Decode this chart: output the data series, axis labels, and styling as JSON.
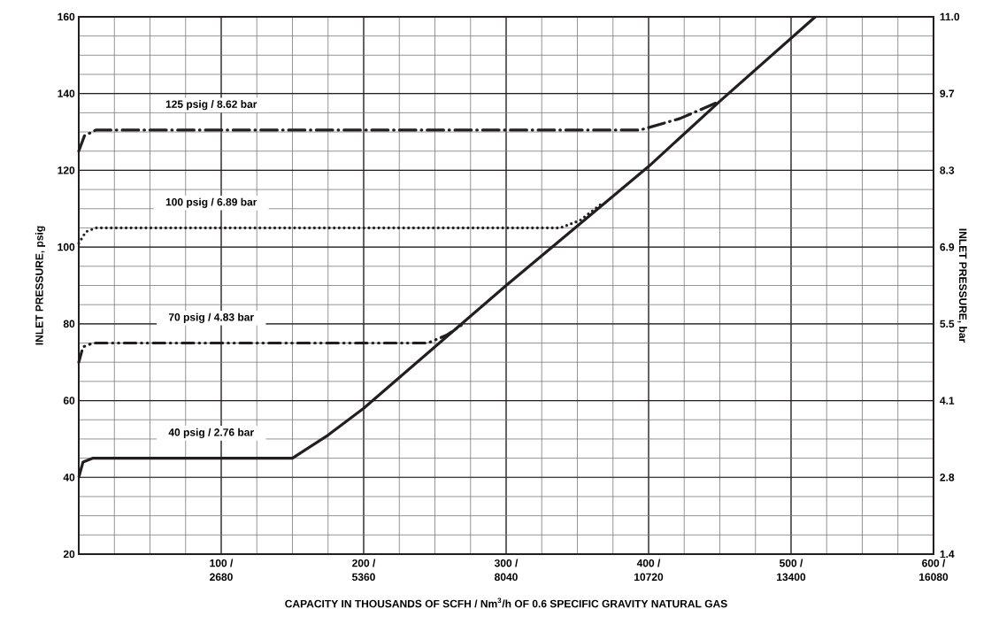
{
  "chart_data": {
    "type": "line",
    "xlabel": "CAPACITY IN THOUSANDS OF SCFH / Nm$^{3}$/h OF 0.6 SPECIFIC GRAVITY NATURAL GAS",
    "ylabel": "INLET PRESSURE, psig",
    "y2label": "INLET PRESSURE, bar",
    "xlim": [
      0,
      600
    ],
    "xticks": [
      {
        "value": 100,
        "label": "100 /"
      },
      {
        "value": 200,
        "label": "200 /"
      },
      {
        "value": 300,
        "label": "300 /"
      },
      {
        "value": 400,
        "label": "400 /"
      },
      {
        "value": 500,
        "label": "500 /"
      },
      {
        "value": 600,
        "label": "600 /"
      }
    ],
    "x2lim": [
      0,
      16080
    ],
    "x2ticks": [
      2680,
      5360,
      8040,
      10720,
      13400,
      16080
    ],
    "ylim": [
      20,
      160
    ],
    "yticks": [
      20,
      40,
      60,
      80,
      100,
      120,
      140,
      160
    ],
    "y2lim": [
      1.379,
      11.032
    ],
    "y2ticks": [
      {
        "value": 1.379,
        "label": "1.4"
      },
      {
        "value": 2.758,
        "label": "2.8"
      },
      {
        "value": 4.137,
        "label": "4.1"
      },
      {
        "value": 5.516,
        "label": "5.5"
      },
      {
        "value": 6.895,
        "label": "6.9"
      },
      {
        "value": 8.274,
        "label": "8.3"
      },
      {
        "value": 9.653,
        "label": "9.7"
      },
      {
        "value": 11.032,
        "label": "11.0"
      }
    ],
    "grid": true,
    "legend": false,
    "marker": "none",
    "series": [
      {
        "name": "40 psig / 2.76 bar",
        "color": "#231f20",
        "line_style": "solid",
        "x": [
          0,
          3,
          10,
          150,
          175,
          200,
          300,
          400,
          450,
          517
        ],
        "values": [
          40,
          44,
          45,
          45,
          51,
          58,
          90,
          121,
          138,
          160
        ]
      },
      {
        "name": "70 psig / 4.83 bar",
        "color": "#231f20",
        "line_style": "dashdotdot",
        "x": [
          0,
          3,
          10,
          245,
          258,
          270
        ],
        "values": [
          70,
          74,
          75,
          75,
          77,
          80
        ]
      },
      {
        "name": "100 psig / 6.89 bar",
        "color": "#231f20",
        "line_style": "dotted",
        "x": [
          0,
          5,
          12,
          338,
          352,
          366
        ],
        "values": [
          101,
          104,
          105,
          105,
          107,
          111
        ]
      },
      {
        "name": "125 psig / 8.62 bar",
        "color": "#231f20",
        "line_style": "dashdot",
        "x": [
          0,
          4,
          12,
          394,
          422,
          447
        ],
        "values": [
          125,
          129,
          130.5,
          130.5,
          133.5,
          137.5
        ]
      }
    ]
  }
}
